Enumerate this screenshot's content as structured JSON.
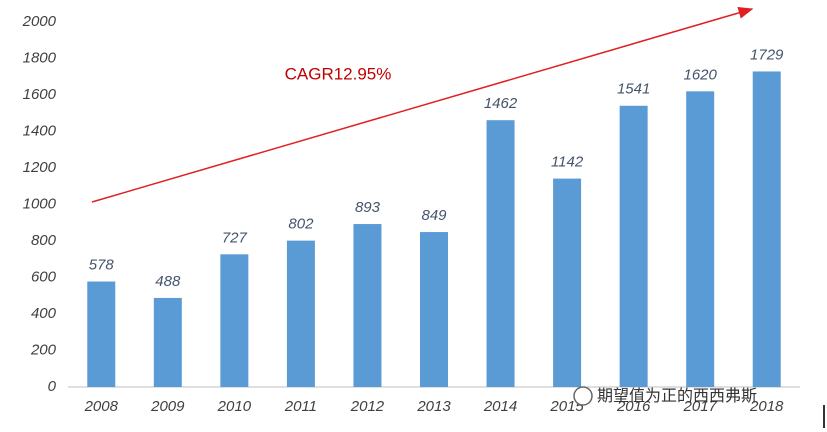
{
  "chart_data": {
    "type": "bar",
    "categories": [
      "2008",
      "2009",
      "2010",
      "2011",
      "2012",
      "2013",
      "2014",
      "2015",
      "2016",
      "2017",
      "2018"
    ],
    "values": [
      578,
      488,
      727,
      802,
      893,
      849,
      1462,
      1142,
      1541,
      1620,
      1729
    ],
    "color": "#5b9bd5",
    "ylim": [
      0,
      2000
    ],
    "yticks": [
      0,
      200,
      400,
      600,
      800,
      1000,
      1200,
      1400,
      1600,
      1800,
      2000
    ],
    "grid": false,
    "annotation": "CAGR12.95%",
    "watermark": "期望值为正的西西弗斯"
  }
}
